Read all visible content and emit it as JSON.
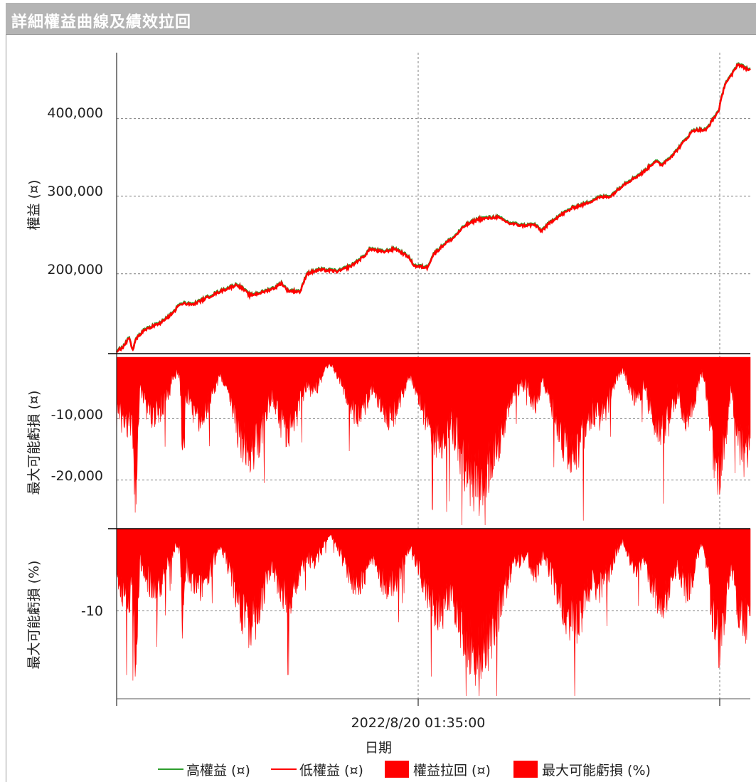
{
  "window": {
    "title": "詳細權益曲線及績效拉回"
  },
  "colors": {
    "high_equity": "#2e9e2e",
    "low_equity": "#ff0000",
    "drawdown_fill": "#ff0000",
    "grid": "#808080"
  },
  "chart_data": [
    {
      "type": "line",
      "ylabel": "權益 (¤)",
      "yticks": [
        "200,000",
        "300,000",
        "400,000"
      ],
      "ylim": [
        98000,
        485000
      ],
      "grid": true,
      "series": [
        {
          "name": "高權益 (¤)",
          "color": "#2e9e2e"
        },
        {
          "name": "低權益 (¤)",
          "color": "#ff0000"
        }
      ],
      "x": [
        0,
        0.01,
        0.02,
        0.025,
        0.03,
        0.04,
        0.05,
        0.07,
        0.09,
        0.1,
        0.12,
        0.14,
        0.16,
        0.19,
        0.2,
        0.21,
        0.23,
        0.25,
        0.26,
        0.27,
        0.29,
        0.3,
        0.32,
        0.35,
        0.37,
        0.39,
        0.4,
        0.42,
        0.44,
        0.46,
        0.47,
        0.49,
        0.5,
        0.52,
        0.53,
        0.55,
        0.57,
        0.6,
        0.62,
        0.64,
        0.66,
        0.67,
        0.69,
        0.7,
        0.72,
        0.74,
        0.76,
        0.78,
        0.8,
        0.83,
        0.85,
        0.86,
        0.88,
        0.9,
        0.91,
        0.93,
        0.95,
        0.96,
        0.97,
        0.98,
        1.0
      ],
      "values": [
        100000,
        105000,
        118000,
        100000,
        115000,
        125000,
        130000,
        137000,
        150000,
        162000,
        160000,
        168000,
        176000,
        186000,
        180000,
        172000,
        176000,
        182000,
        188000,
        178000,
        177000,
        200000,
        205000,
        203000,
        210000,
        222000,
        232000,
        228000,
        232000,
        222000,
        210000,
        208000,
        225000,
        240000,
        245000,
        262000,
        270000,
        273000,
        265000,
        262000,
        263000,
        255000,
        270000,
        275000,
        285000,
        290000,
        298000,
        300000,
        315000,
        330000,
        345000,
        340000,
        355000,
        375000,
        385000,
        385000,
        410000,
        445000,
        455000,
        470000,
        462000
      ]
    },
    {
      "type": "area",
      "ylabel": "最大可能虧損 (¤)",
      "yticks": [
        "-10,000",
        "-20,000"
      ],
      "ylim": [
        -27800,
        0
      ],
      "grid": true,
      "series": [
        {
          "name": "權益拉回 (¤)",
          "color": "#ff0000"
        }
      ]
    },
    {
      "type": "area",
      "ylabel": "最大可能虧損 (%)",
      "yticks": [
        "-10"
      ],
      "ylim": [
        -20.7,
        0
      ],
      "grid": true,
      "series": [
        {
          "name": "最大可能虧損 (%)",
          "color": "#ff0000"
        }
      ]
    }
  ],
  "x_axis": {
    "tick": "2022/8/20 01:35:00",
    "label": "日期"
  },
  "legend": [
    {
      "label": "高權益 (¤)",
      "swatch": "line",
      "color": "#2e9e2e"
    },
    {
      "label": "低權益 (¤)",
      "swatch": "line",
      "color": "#ff0000"
    },
    {
      "label": "權益拉回 (¤)",
      "swatch": "box",
      "color": "#ff0000"
    },
    {
      "label": "最大可能虧損 (%)",
      "swatch": "box",
      "color": "#ff0000"
    }
  ]
}
